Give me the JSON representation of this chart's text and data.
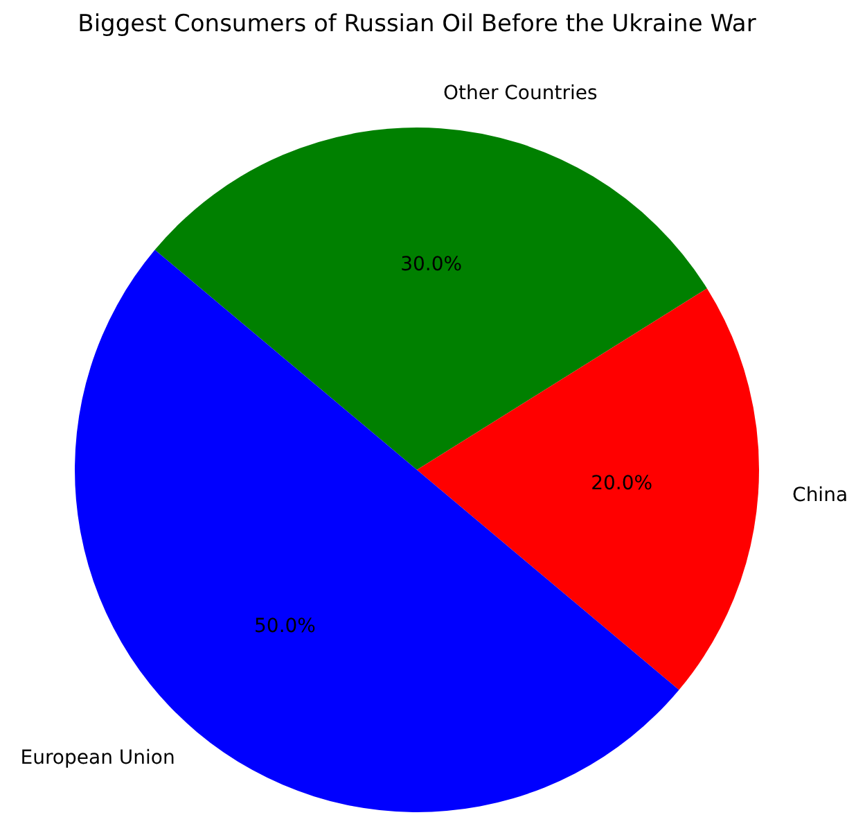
{
  "chart_data": {
    "type": "pie",
    "title": "Biggest Consumers of Russian Oil Before the Ukraine War",
    "categories": [
      "Other Countries",
      "China",
      "European Union"
    ],
    "values": [
      30,
      20,
      50
    ],
    "value_labels": [
      "30.0%",
      "20.0%",
      "50.0%"
    ],
    "colors": [
      "#008000",
      "#ff0000",
      "#0000ff"
    ],
    "legend": false
  }
}
